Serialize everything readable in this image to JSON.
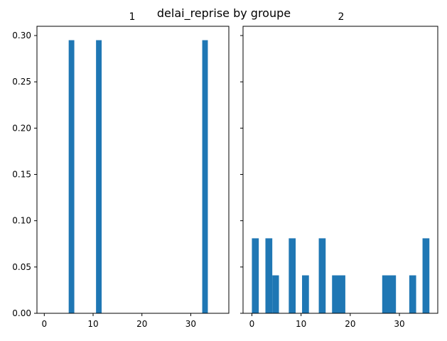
{
  "chart_data": {
    "type": "bar",
    "title": "delai_reprise by groupe",
    "bar_color": "#1f77b4",
    "shared_y": true,
    "ylim": [
      0,
      0.31
    ],
    "yticks": [
      "0.00",
      "0.05",
      "0.10",
      "0.15",
      "0.20",
      "0.25",
      "0.30"
    ],
    "grid": false,
    "panels": [
      {
        "title": "1",
        "xlim": [
          -1.5,
          37.8
        ],
        "xticks": [
          "0",
          "10",
          "20",
          "30"
        ],
        "bins": [
          {
            "x0": 5.0,
            "x1": 6.15,
            "value": 0.295
          },
          {
            "x0": 10.6,
            "x1": 11.75,
            "value": 0.295
          },
          {
            "x0": 32.35,
            "x1": 33.5,
            "value": 0.295
          }
        ]
      },
      {
        "title": "2",
        "xlim": [
          -1.8,
          37.8
        ],
        "xticks": [
          "0",
          "10",
          "20",
          "30"
        ],
        "bins": [
          {
            "x0": 0.0,
            "x1": 1.4,
            "value": 0.081
          },
          {
            "x0": 2.75,
            "x1": 4.15,
            "value": 0.081
          },
          {
            "x0": 4.15,
            "x1": 5.5,
            "value": 0.041
          },
          {
            "x0": 7.5,
            "x1": 8.9,
            "value": 0.081
          },
          {
            "x0": 10.2,
            "x1": 11.6,
            "value": 0.041
          },
          {
            "x0": 13.6,
            "x1": 15.0,
            "value": 0.081
          },
          {
            "x0": 16.3,
            "x1": 19.0,
            "value": 0.041
          },
          {
            "x0": 26.5,
            "x1": 29.3,
            "value": 0.041
          },
          {
            "x0": 32.0,
            "x1": 33.4,
            "value": 0.041
          },
          {
            "x0": 34.7,
            "x1": 36.1,
            "value": 0.081
          }
        ]
      }
    ]
  }
}
